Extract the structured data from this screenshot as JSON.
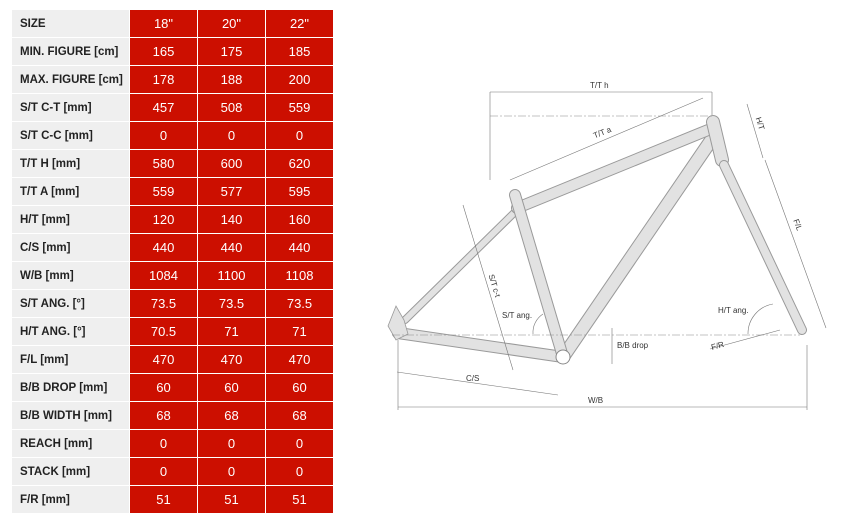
{
  "table": {
    "columns": [
      "SIZE",
      "18\"",
      "20\"",
      "22\""
    ],
    "rows": [
      [
        "MIN. FIGURE [cm]",
        "165",
        "175",
        "185"
      ],
      [
        "MAX. FIGURE [cm]",
        "178",
        "188",
        "200"
      ],
      [
        "S/T C-T [mm]",
        "457",
        "508",
        "559"
      ],
      [
        "S/T C-C [mm]",
        "0",
        "0",
        "0"
      ],
      [
        "T/T H [mm]",
        "580",
        "600",
        "620"
      ],
      [
        "T/T A [mm]",
        "559",
        "577",
        "595"
      ],
      [
        "H/T [mm]",
        "120",
        "140",
        "160"
      ],
      [
        "C/S [mm]",
        "440",
        "440",
        "440"
      ],
      [
        "W/B [mm]",
        "1084",
        "1100",
        "1108"
      ],
      [
        "S/T ANG. [°]",
        "73.5",
        "73.5",
        "73.5"
      ],
      [
        "H/T ANG. [°]",
        "70.5",
        "71",
        "71"
      ],
      [
        "F/L [mm]",
        "470",
        "470",
        "470"
      ],
      [
        "B/B DROP [mm]",
        "60",
        "60",
        "60"
      ],
      [
        "B/B WIDTH [mm]",
        "68",
        "68",
        "68"
      ],
      [
        "REACH [mm]",
        "0",
        "0",
        "0"
      ],
      [
        "STACK [mm]",
        "0",
        "0",
        "0"
      ],
      [
        "F/R [mm]",
        "51",
        "51",
        "51"
      ]
    ]
  },
  "diagram": {
    "tth": "T/T h",
    "tta": "T/T a",
    "ht": "H/T",
    "fl": "F/L",
    "stct": "S/T c-t",
    "stang": "S/T ang.",
    "htang": "H/T ang.",
    "bbdrop": "B/B drop",
    "fr": "F/R",
    "cs": "C/S",
    "wb": "W/B"
  },
  "colors": {
    "accent": "#cc0f00",
    "label_bg": "#efefef"
  }
}
